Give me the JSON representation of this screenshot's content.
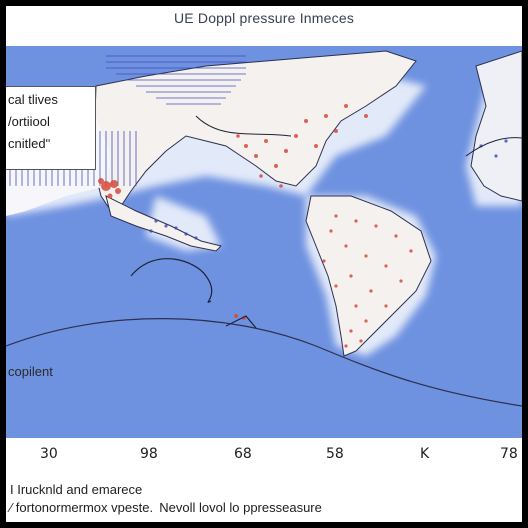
{
  "title": "UE Doppl pressure Inmeces",
  "legend": {
    "line1": "cal tlives",
    "line2": "/ortiiool",
    "line3": "cnitledʺ"
  },
  "map_label": "copilent",
  "axis_ticks": [
    "30",
    "98",
    "68",
    "58",
    "K",
    "78"
  ],
  "caption": {
    "line1": "I Irucknld and emarece",
    "line2": "∕ fortonormermox vpeste.  Nevoll lovol lo ppresseasure"
  },
  "colors": {
    "ocean": "#6f92e0",
    "land": "#f4f1ee",
    "coast": "#2c3050",
    "pressure_marks": "#d84a3a",
    "ocean_marks": "#3c46b8"
  }
}
